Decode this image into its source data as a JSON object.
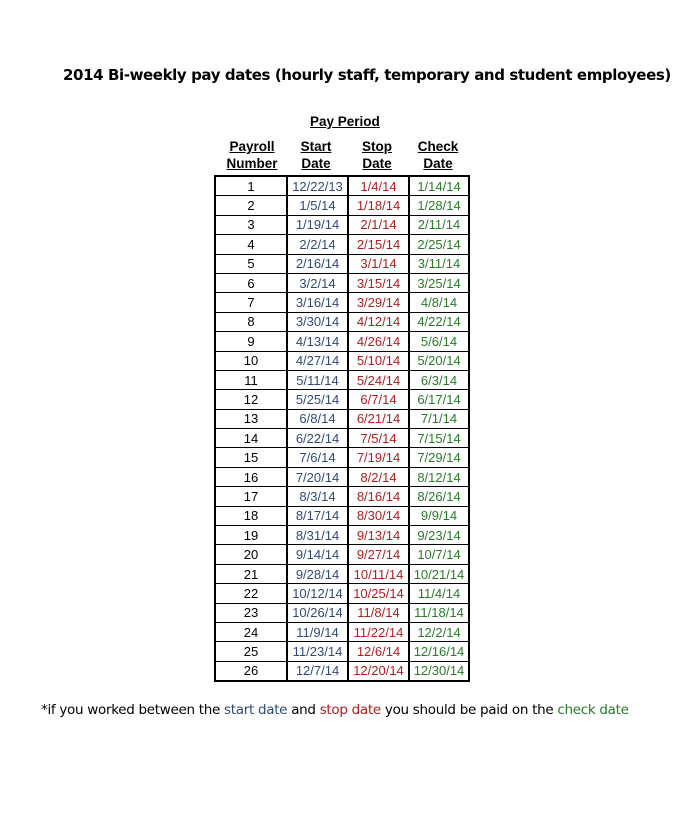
{
  "title": "2014 Bi-weekly pay dates (hourly staff, temporary and student employees)",
  "pay_period_label": "Pay Period",
  "headers": [
    [
      "Payroll",
      "Number"
    ],
    [
      "Start",
      "Date"
    ],
    [
      "Stop",
      "Date"
    ],
    [
      "Check",
      "Date"
    ]
  ],
  "colors": {
    "start": "#2f4a78",
    "stop": "#b01e1e",
    "check": "#2a7a2a"
  },
  "rows": [
    [
      "1",
      "12/22/13",
      "1/4/14",
      "1/14/14"
    ],
    [
      "2",
      "1/5/14",
      "1/18/14",
      "1/28/14"
    ],
    [
      "3",
      "1/19/14",
      "2/1/14",
      "2/11/14"
    ],
    [
      "4",
      "2/2/14",
      "2/15/14",
      "2/25/14"
    ],
    [
      "5",
      "2/16/14",
      "3/1/14",
      "3/11/14"
    ],
    [
      "6",
      "3/2/14",
      "3/15/14",
      "3/25/14"
    ],
    [
      "7",
      "3/16/14",
      "3/29/14",
      "4/8/14"
    ],
    [
      "8",
      "3/30/14",
      "4/12/14",
      "4/22/14"
    ],
    [
      "9",
      "4/13/14",
      "4/26/14",
      "5/6/14"
    ],
    [
      "10",
      "4/27/14",
      "5/10/14",
      "5/20/14"
    ],
    [
      "11",
      "5/11/14",
      "5/24/14",
      "6/3/14"
    ],
    [
      "12",
      "5/25/14",
      "6/7/14",
      "6/17/14"
    ],
    [
      "13",
      "6/8/14",
      "6/21/14",
      "7/1/14"
    ],
    [
      "14",
      "6/22/14",
      "7/5/14",
      "7/15/14"
    ],
    [
      "15",
      "7/6/14",
      "7/19/14",
      "7/29/14"
    ],
    [
      "16",
      "7/20/14",
      "8/2/14",
      "8/12/14"
    ],
    [
      "17",
      "8/3/14",
      "8/16/14",
      "8/26/14"
    ],
    [
      "18",
      "8/17/14",
      "8/30/14",
      "9/9/14"
    ],
    [
      "19",
      "8/31/14",
      "9/13/14",
      "9/23/14"
    ],
    [
      "20",
      "9/14/14",
      "9/27/14",
      "10/7/14"
    ],
    [
      "21",
      "9/28/14",
      "10/11/14",
      "10/21/14"
    ],
    [
      "22",
      "10/12/14",
      "10/25/14",
      "11/4/14"
    ],
    [
      "23",
      "10/26/14",
      "11/8/14",
      "11/18/14"
    ],
    [
      "24",
      "11/9/14",
      "11/22/14",
      "12/2/14"
    ],
    [
      "25",
      "11/23/14",
      "12/6/14",
      "12/16/14"
    ],
    [
      "26",
      "12/7/14",
      "12/20/14",
      "12/30/14"
    ]
  ],
  "footnote": {
    "prefix": "*if you worked between the ",
    "start": "start date",
    "mid": " and ",
    "stop": "stop date",
    "mid2": " you should be paid on the ",
    "check": "check date"
  }
}
